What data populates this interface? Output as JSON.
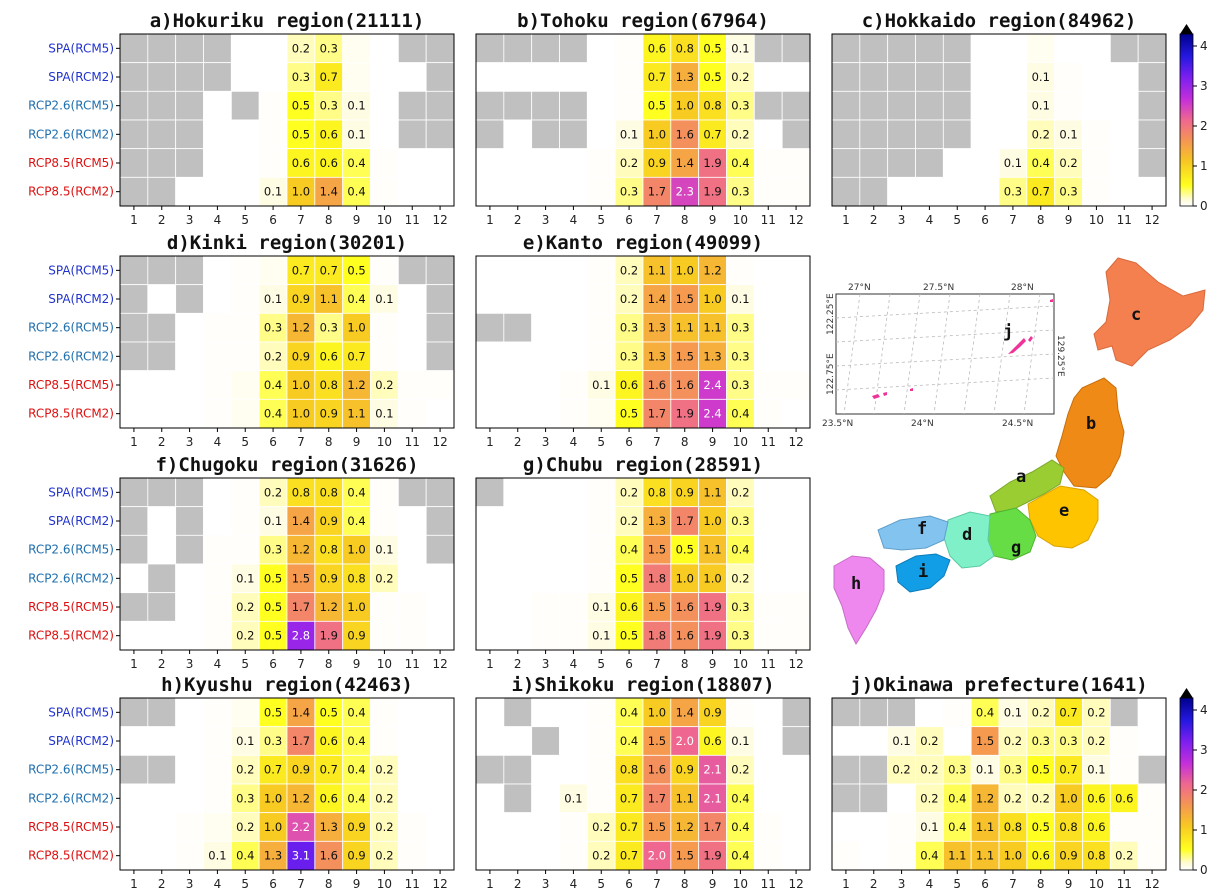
{
  "chart_data": {
    "type": "heatmap",
    "months": [
      "1",
      "2",
      "3",
      "4",
      "5",
      "6",
      "7",
      "8",
      "9",
      "10",
      "11",
      "12"
    ],
    "rows": [
      {
        "label": "SPA(RCM5)",
        "color": "#2233cc"
      },
      {
        "label": "SPA(RCM2)",
        "color": "#2233cc"
      },
      {
        "label": "RCP2.6(RCM5)",
        "color": "#1f6fae"
      },
      {
        "label": "RCP2.6(RCM2)",
        "color": "#1f6fae"
      },
      {
        "label": "RCP8.5(RCM5)",
        "color": "#dd1111"
      },
      {
        "label": "RCP8.5(RCM2)",
        "color": "#dd1111"
      }
    ],
    "colorbar": {
      "min": 0,
      "max": 4,
      "ticks": [
        "0",
        "1",
        "2",
        "3",
        "4"
      ],
      "extend": "max"
    },
    "panels": [
      {
        "title": "a)Hokuriku region(21111)",
        "values": [
          [
            null,
            null,
            null,
            null,
            0,
            0,
            0.2,
            0.3,
            0.05,
            0,
            null,
            null
          ],
          [
            null,
            null,
            null,
            null,
            0,
            0,
            0.3,
            0.7,
            0.05,
            0,
            0,
            null
          ],
          [
            null,
            null,
            null,
            0,
            null,
            0.02,
            0.5,
            0.3,
            0.1,
            0,
            null,
            null
          ],
          [
            null,
            null,
            null,
            0,
            0,
            0.02,
            0.5,
            0.6,
            0.1,
            0,
            null,
            null
          ],
          [
            null,
            null,
            null,
            0,
            0,
            0.02,
            0.6,
            0.6,
            0.4,
            0.02,
            0,
            0
          ],
          [
            null,
            null,
            0,
            0,
            0,
            0.1,
            1.0,
            1.4,
            0.4,
            0.02,
            0,
            0
          ]
        ]
      },
      {
        "title": "b)Tohoku region(67964)",
        "values": [
          [
            null,
            null,
            null,
            null,
            0,
            0.02,
            0.6,
            0.8,
            0.5,
            0.1,
            null,
            null
          ],
          [
            0,
            0,
            0,
            0,
            0,
            0.02,
            0.7,
            1.3,
            0.5,
            0.2,
            0,
            0
          ],
          [
            null,
            null,
            null,
            null,
            0,
            0.02,
            0.5,
            1.0,
            0.8,
            0.3,
            null,
            null
          ],
          [
            null,
            0,
            null,
            null,
            0,
            0.1,
            1.0,
            1.6,
            0.7,
            0.2,
            0,
            null
          ],
          [
            0,
            0,
            0,
            0,
            0.02,
            0.2,
            0.9,
            1.4,
            1.9,
            0.4,
            0.02,
            0.02
          ],
          [
            0,
            0,
            0,
            0,
            0.02,
            0.3,
            1.7,
            2.3,
            1.9,
            0.3,
            0.02,
            0.02
          ]
        ]
      },
      {
        "title": "c)Hokkaido region(84962)",
        "values": [
          [
            null,
            null,
            null,
            null,
            null,
            0,
            0,
            0.05,
            0,
            0,
            null,
            null
          ],
          [
            null,
            null,
            null,
            null,
            null,
            0,
            0,
            0.1,
            0.02,
            0,
            0,
            null
          ],
          [
            null,
            null,
            null,
            null,
            null,
            0,
            0,
            0.1,
            0.02,
            0,
            0,
            null
          ],
          [
            null,
            null,
            null,
            null,
            null,
            0,
            0,
            0.2,
            0.1,
            0.02,
            0,
            null
          ],
          [
            null,
            null,
            null,
            null,
            0,
            0,
            0.1,
            0.4,
            0.2,
            0.02,
            0,
            null
          ],
          [
            null,
            null,
            0,
            0,
            0,
            0,
            0.3,
            0.7,
            0.3,
            0.02,
            0,
            0
          ]
        ]
      },
      {
        "title": "d)Kinki region(30201)",
        "values": [
          [
            null,
            null,
            null,
            0,
            0.02,
            0.05,
            0.7,
            0.7,
            0.5,
            0.02,
            null,
            null
          ],
          [
            null,
            0,
            null,
            0,
            0.02,
            0.1,
            0.9,
            1.1,
            0.4,
            0.1,
            0,
            null
          ],
          [
            null,
            null,
            0,
            0.02,
            0.02,
            0.3,
            1.2,
            0.3,
            1.0,
            0.02,
            0,
            null
          ],
          [
            null,
            null,
            0,
            0.02,
            0.02,
            0.2,
            0.9,
            0.6,
            0.7,
            0.02,
            0,
            null
          ],
          [
            0,
            0,
            0,
            0.02,
            0.05,
            0.4,
            1.0,
            0.8,
            1.2,
            0.2,
            0.02,
            0.02
          ],
          [
            0,
            0,
            0,
            0.02,
            0.05,
            0.4,
            1.0,
            0.9,
            1.1,
            0.1,
            0.02,
            0
          ]
        ]
      },
      {
        "title": "e)Kanto region(49099)",
        "values": [
          [
            0,
            0,
            0,
            0,
            0.02,
            0.2,
            1.1,
            1.0,
            1.2,
            0.02,
            0,
            0
          ],
          [
            0,
            0,
            0,
            0,
            0.02,
            0.2,
            1.4,
            1.5,
            1.0,
            0.1,
            0,
            0
          ],
          [
            null,
            null,
            0,
            0,
            0.02,
            0.3,
            1.3,
            1.1,
            1.1,
            0.3,
            0,
            0
          ],
          [
            0,
            0,
            0,
            0,
            0.02,
            0.3,
            1.3,
            1.5,
            1.3,
            0.3,
            0,
            0
          ],
          [
            0,
            0,
            0,
            0.02,
            0.1,
            0.6,
            1.6,
            1.6,
            2.4,
            0.3,
            0.02,
            0.02
          ],
          [
            0,
            0,
            0,
            0.02,
            0.05,
            0.5,
            1.7,
            1.9,
            2.4,
            0.4,
            0.02,
            0
          ]
        ]
      },
      {
        "title": "f)Chugoku region(31626)",
        "values": [
          [
            null,
            null,
            null,
            0,
            0.02,
            0.2,
            0.8,
            0.8,
            0.4,
            0.02,
            null,
            null
          ],
          [
            null,
            0,
            null,
            0,
            0.02,
            0.1,
            1.4,
            0.9,
            0.4,
            0.02,
            0,
            null
          ],
          [
            null,
            0,
            null,
            0.02,
            0.02,
            0.3,
            1.2,
            0.8,
            1.0,
            0.1,
            0,
            null
          ],
          [
            0,
            null,
            0,
            0.02,
            0.1,
            0.5,
            1.5,
            0.9,
            0.8,
            0.2,
            0,
            0
          ],
          [
            null,
            null,
            0,
            0.02,
            0.2,
            0.5,
            1.7,
            1.2,
            1.0,
            0.02,
            0.02,
            0
          ],
          [
            0,
            0,
            0,
            0.02,
            0.2,
            0.5,
            2.8,
            1.9,
            0.9,
            0.02,
            0.02,
            0
          ]
        ]
      },
      {
        "title": "g)Chubu region(28591)",
        "values": [
          [
            null,
            0,
            0,
            0,
            0.02,
            0.2,
            0.8,
            0.9,
            1.1,
            0.2,
            0,
            0
          ],
          [
            0,
            0,
            0,
            0,
            0.02,
            0.2,
            1.3,
            1.7,
            1.0,
            0.3,
            0,
            0
          ],
          [
            0,
            0,
            0,
            0,
            0.02,
            0.4,
            1.5,
            0.5,
            1.1,
            0.4,
            0,
            0
          ],
          [
            0,
            0,
            0,
            0,
            0.02,
            0.5,
            1.8,
            1.0,
            1.0,
            0.2,
            0,
            0
          ],
          [
            0,
            0,
            0.02,
            0.02,
            0.1,
            0.6,
            1.5,
            1.6,
            1.9,
            0.3,
            0.02,
            0.02
          ],
          [
            0,
            0,
            0.02,
            0.02,
            0.1,
            0.5,
            1.8,
            1.6,
            1.9,
            0.3,
            0.02,
            0.02
          ]
        ]
      },
      {
        "title": "h)Kyushu region(42463)",
        "values": [
          [
            null,
            null,
            0,
            0.02,
            0.05,
            0.5,
            1.4,
            0.5,
            0.4,
            0.02,
            0,
            0
          ],
          [
            0,
            0,
            0,
            0.02,
            0.1,
            0.3,
            1.7,
            0.6,
            0.4,
            0.02,
            0,
            0
          ],
          [
            null,
            null,
            0,
            0.02,
            0.2,
            0.7,
            0.9,
            0.7,
            0.4,
            0.2,
            0,
            0
          ],
          [
            0,
            0,
            0,
            0.02,
            0.3,
            1.0,
            1.2,
            0.6,
            0.4,
            0.2,
            0,
            0
          ],
          [
            0,
            0,
            0.02,
            0.05,
            0.2,
            1.0,
            2.2,
            1.3,
            0.9,
            0.2,
            0.02,
            0
          ],
          [
            0,
            0,
            0.02,
            0.1,
            0.4,
            1.3,
            3.1,
            1.6,
            0.9,
            0.2,
            0.02,
            0
          ]
        ]
      },
      {
        "title": "i)Shikoku region(18807)",
        "values": [
          [
            0,
            null,
            0,
            0,
            0.02,
            0.4,
            1.0,
            1.4,
            0.9,
            0.02,
            0,
            null
          ],
          [
            0,
            0,
            null,
            0,
            0.02,
            0.4,
            1.5,
            2.0,
            0.6,
            0.1,
            0,
            null
          ],
          [
            null,
            null,
            0,
            0,
            0.02,
            0.8,
            1.6,
            0.9,
            2.1,
            0.2,
            0,
            0
          ],
          [
            0,
            null,
            0,
            0.1,
            0.02,
            0.7,
            1.7,
            1.1,
            2.1,
            0.4,
            0,
            0
          ],
          [
            0,
            0,
            0,
            0.02,
            0.2,
            0.7,
            1.5,
            1.2,
            1.7,
            0.4,
            0.02,
            0
          ],
          [
            0,
            0,
            0,
            0.02,
            0.2,
            0.7,
            2.0,
            1.5,
            1.9,
            0.4,
            0.02,
            0
          ]
        ]
      },
      {
        "title": "j)Okinawa prefecture(1641)",
        "values": [
          [
            null,
            null,
            null,
            0,
            0.02,
            0.4,
            0.1,
            0.2,
            0.7,
            0.2,
            null,
            0
          ],
          [
            0,
            0,
            0.1,
            0.2,
            0,
            1.5,
            0.2,
            0.3,
            0.3,
            0.2,
            0.02,
            0
          ],
          [
            null,
            null,
            0.2,
            0.2,
            0.3,
            0.1,
            0.3,
            0.5,
            0.7,
            0.1,
            0.02,
            null
          ],
          [
            null,
            null,
            0,
            0.2,
            0.4,
            1.2,
            0.2,
            0.2,
            1.0,
            0.6,
            0.6,
            0.02
          ],
          [
            0,
            0,
            0.02,
            0.1,
            0.4,
            1.1,
            0.8,
            0.5,
            0.8,
            0.6,
            0.02,
            0.02
          ],
          [
            0.02,
            0,
            0.02,
            0.4,
            1.1,
            1.1,
            1.0,
            0.6,
            0.9,
            0.8,
            0.2,
            0.02
          ]
        ]
      }
    ]
  },
  "map": {
    "region_labels": [
      "a",
      "b",
      "c",
      "d",
      "e",
      "f",
      "g",
      "h",
      "i"
    ],
    "region_colors": {
      "a": "#9acd32",
      "b": "#f08a16",
      "c": "#f47f4f",
      "d": "#7ff0c8",
      "e": "#ffc400",
      "f": "#82c3f0",
      "g": "#66dd44",
      "h": "#ee88ee",
      "i": "#129ee6"
    },
    "inset": {
      "label": "j",
      "top_labels": [
        "27°N",
        "27.5°N",
        "28°N"
      ],
      "bottom_labels": [
        "23.5°N",
        "24°N",
        "24.5°N"
      ],
      "left_labels": [
        "122.25°E",
        "122.75°E"
      ],
      "right_labels": [
        "129.25°E"
      ]
    }
  }
}
